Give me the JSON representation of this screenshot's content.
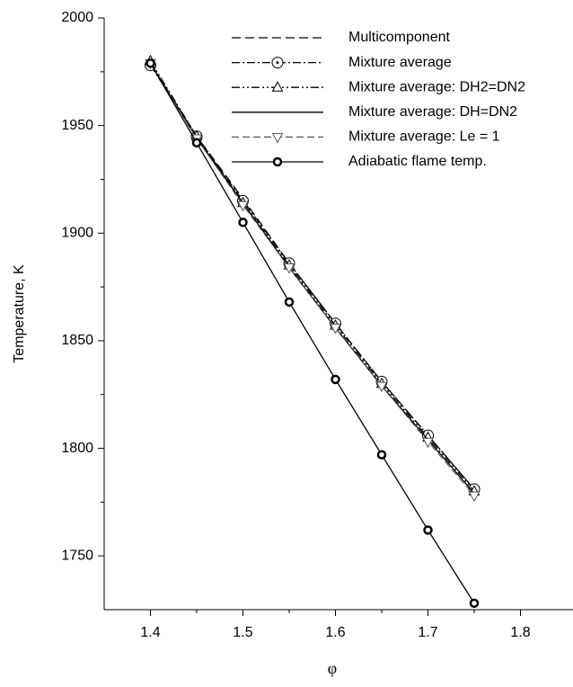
{
  "chart_data": {
    "type": "line",
    "x_label": "φ",
    "y_label": "Temperature, K",
    "x": [
      1.4,
      1.45,
      1.5,
      1.55,
      1.6,
      1.65,
      1.7,
      1.75
    ],
    "xlim": [
      1.35,
      1.85
    ],
    "xticks": [
      1.4,
      1.5,
      1.6,
      1.7,
      1.8
    ],
    "ylim": [
      1725,
      2000
    ],
    "yticks": [
      1750,
      1800,
      1850,
      1900,
      1950,
      2000
    ],
    "legend": "top-right",
    "series": [
      {
        "name": "Multicomponent",
        "color": "#000000",
        "dash": "dashed",
        "marker": "none",
        "values": [
          1979,
          1945,
          1916,
          1886,
          1858,
          1831,
          1806,
          1781
        ]
      },
      {
        "name": "Mixture average",
        "color": "#000000",
        "dash": "dash-dot",
        "marker": "circle",
        "values": [
          1978,
          1945,
          1915,
          1886,
          1858,
          1831,
          1806,
          1781
        ]
      },
      {
        "name": "Mixture average: DH2=DN2",
        "color": "#000000",
        "dash": "dash-dot-dot",
        "marker": "triangle",
        "values": [
          1980,
          1945,
          1914,
          1885,
          1857,
          1830,
          1805,
          1780
        ]
      },
      {
        "name": "Mixture average: DH=DN2",
        "color": "#000000",
        "dash": "solid",
        "marker": "none",
        "values": [
          1979,
          1944,
          1914,
          1884,
          1856,
          1829,
          1804,
          1779
        ]
      },
      {
        "name": "Mixture average: Le = 1",
        "color": "#555555",
        "dash": "dashed-thin",
        "marker": "triangle-down",
        "values": [
          1979,
          1944,
          1913,
          1884,
          1856,
          1829,
          1803,
          1778
        ]
      },
      {
        "name": "Adiabatic flame temp.",
        "color": "#000000",
        "dash": "solid",
        "marker": "bullseye",
        "values": [
          1979,
          1942,
          1905,
          1868,
          1832,
          1797,
          1762,
          1728
        ]
      }
    ]
  }
}
